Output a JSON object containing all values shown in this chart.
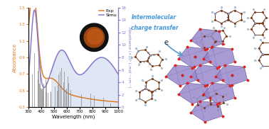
{
  "xlim": [
    300,
    1000
  ],
  "ylim_left": [
    0.3,
    1.5
  ],
  "ylim_right": [
    0,
    16
  ],
  "xlabel": "Wavelength (nm)",
  "ylabel_left": "Absorbance",
  "ylabel_right": "Absorbance (×10³ L·mol⁻¹·cm⁻¹)",
  "legend_exp": "Exp",
  "legend_simu": "Simu",
  "exp_color": "#E07820",
  "simu_color": "#8878CC",
  "bar_color": "#888888",
  "shading_color": "#C8D4EC",
  "shading_alpha": 0.55,
  "intermolecular_text1": "Intermolecular",
  "intermolecular_text2": "charge transfer",
  "electron_text": "e",
  "arrow_color": "#5599CC",
  "text_color": "#4499DD",
  "organic_node_color": "#7B4020",
  "organic_edge_color": "#7B4020",
  "H_color": "#AABBCC",
  "N_color": "#8899BB",
  "poly_face_color": "#9988CC",
  "poly_edge_color": "#665590",
  "O_color": "#DD2222",
  "bg_color": "#FFFFFF"
}
